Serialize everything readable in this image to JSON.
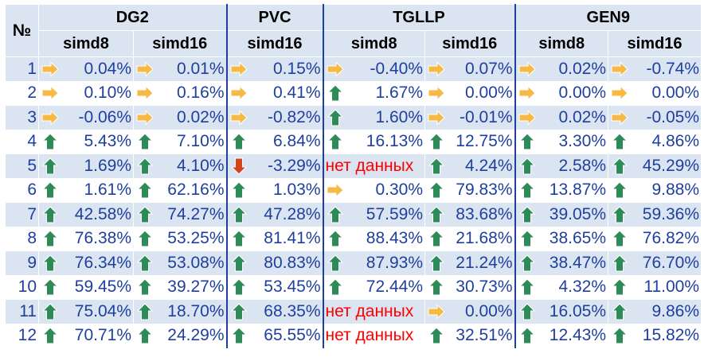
{
  "header": {
    "num_label": "№",
    "groups": [
      {
        "name": "DG2",
        "cols": [
          "simd8",
          "simd16"
        ]
      },
      {
        "name": "PVC",
        "cols": [
          "simd16"
        ]
      },
      {
        "name": "TGLLP",
        "cols": [
          "simd8",
          "simd16"
        ]
      },
      {
        "name": "GEN9",
        "cols": [
          "simd8",
          "simd16"
        ]
      }
    ]
  },
  "icons": {
    "up": {
      "name": "green-up-arrow-icon",
      "color": "#2e8b57"
    },
    "right": {
      "name": "yellow-right-arrow-icon",
      "color": "#f5b944"
    },
    "down": {
      "name": "red-down-arrow-icon",
      "color": "#d2461e"
    }
  },
  "no_data_color": "#ff0000",
  "rows": [
    {
      "num": "1",
      "cells": [
        {
          "icon": "right",
          "value": "0.04%"
        },
        {
          "icon": "right",
          "value": "0.01%"
        },
        {
          "icon": "right",
          "value": "0.15%"
        },
        {
          "icon": "right",
          "value": "-0.40%"
        },
        {
          "icon": "right",
          "value": "0.07%"
        },
        {
          "icon": "right",
          "value": "0.02%"
        },
        {
          "icon": "right",
          "value": "-0.74%"
        }
      ]
    },
    {
      "num": "2",
      "cells": [
        {
          "icon": "right",
          "value": "0.10%"
        },
        {
          "icon": "right",
          "value": "0.16%"
        },
        {
          "icon": "right",
          "value": "0.41%"
        },
        {
          "icon": "up",
          "value": "1.67%"
        },
        {
          "icon": "right",
          "value": "0.00%"
        },
        {
          "icon": "right",
          "value": "0.00%"
        },
        {
          "icon": "right",
          "value": "0.00%"
        }
      ]
    },
    {
      "num": "3",
      "cells": [
        {
          "icon": "right",
          "value": "-0.06%"
        },
        {
          "icon": "right",
          "value": "0.02%"
        },
        {
          "icon": "right",
          "value": "-0.82%"
        },
        {
          "icon": "up",
          "value": "1.60%"
        },
        {
          "icon": "right",
          "value": "-0.01%"
        },
        {
          "icon": "right",
          "value": "0.02%"
        },
        {
          "icon": "right",
          "value": "-0.05%"
        }
      ]
    },
    {
      "num": "4",
      "cells": [
        {
          "icon": "up",
          "value": "5.43%"
        },
        {
          "icon": "up",
          "value": "7.10%"
        },
        {
          "icon": "up",
          "value": "6.84%"
        },
        {
          "icon": "up",
          "value": "16.13%"
        },
        {
          "icon": "up",
          "value": "12.75%"
        },
        {
          "icon": "up",
          "value": "3.30%"
        },
        {
          "icon": "up",
          "value": "4.86%"
        }
      ]
    },
    {
      "num": "5",
      "cells": [
        {
          "icon": "up",
          "value": "1.69%"
        },
        {
          "icon": "up",
          "value": "4.10%"
        },
        {
          "icon": "down",
          "value": "-3.29%"
        },
        {
          "icon": null,
          "value": "нет данных",
          "nodata": true
        },
        {
          "icon": "up",
          "value": "4.24%"
        },
        {
          "icon": "up",
          "value": "2.58%"
        },
        {
          "icon": "up",
          "value": "45.29%"
        }
      ]
    },
    {
      "num": "6",
      "cells": [
        {
          "icon": "up",
          "value": "1.61%"
        },
        {
          "icon": "up",
          "value": "62.16%"
        },
        {
          "icon": "up",
          "value": "1.03%"
        },
        {
          "icon": "right",
          "value": "0.30%"
        },
        {
          "icon": "up",
          "value": "79.83%"
        },
        {
          "icon": "up",
          "value": "13.87%"
        },
        {
          "icon": "up",
          "value": "9.88%"
        }
      ]
    },
    {
      "num": "7",
      "cells": [
        {
          "icon": "up",
          "value": "42.58%"
        },
        {
          "icon": "up",
          "value": "74.27%"
        },
        {
          "icon": "up",
          "value": "47.28%"
        },
        {
          "icon": "up",
          "value": "57.59%"
        },
        {
          "icon": "up",
          "value": "83.68%"
        },
        {
          "icon": "up",
          "value": "39.05%"
        },
        {
          "icon": "up",
          "value": "59.36%"
        }
      ]
    },
    {
      "num": "8",
      "cells": [
        {
          "icon": "up",
          "value": "76.38%"
        },
        {
          "icon": "up",
          "value": "53.25%"
        },
        {
          "icon": "up",
          "value": "81.41%"
        },
        {
          "icon": "up",
          "value": "88.43%"
        },
        {
          "icon": "up",
          "value": "21.68%"
        },
        {
          "icon": "up",
          "value": "38.65%"
        },
        {
          "icon": "up",
          "value": "76.82%"
        }
      ]
    },
    {
      "num": "9",
      "cells": [
        {
          "icon": "up",
          "value": "76.34%"
        },
        {
          "icon": "up",
          "value": "53.08%"
        },
        {
          "icon": "up",
          "value": "80.83%"
        },
        {
          "icon": "up",
          "value": "87.93%"
        },
        {
          "icon": "up",
          "value": "21.24%"
        },
        {
          "icon": "up",
          "value": "38.47%"
        },
        {
          "icon": "up",
          "value": "76.70%"
        }
      ]
    },
    {
      "num": "10",
      "cells": [
        {
          "icon": "up",
          "value": "59.45%"
        },
        {
          "icon": "up",
          "value": "39.27%"
        },
        {
          "icon": "up",
          "value": "53.45%"
        },
        {
          "icon": "up",
          "value": "72.44%"
        },
        {
          "icon": "up",
          "value": "30.73%"
        },
        {
          "icon": "up",
          "value": "4.32%"
        },
        {
          "icon": "up",
          "value": "11.00%"
        }
      ]
    },
    {
      "num": "11",
      "cells": [
        {
          "icon": "up",
          "value": "75.04%"
        },
        {
          "icon": "up",
          "value": "18.70%"
        },
        {
          "icon": "up",
          "value": "68.35%"
        },
        {
          "icon": null,
          "value": "нет данных",
          "nodata": true
        },
        {
          "icon": "right",
          "value": "0.00%"
        },
        {
          "icon": "up",
          "value": "16.05%"
        },
        {
          "icon": "up",
          "value": "9.86%"
        }
      ]
    },
    {
      "num": "12",
      "cells": [
        {
          "icon": "up",
          "value": "70.71%"
        },
        {
          "icon": "up",
          "value": "24.29%"
        },
        {
          "icon": "up",
          "value": "65.55%"
        },
        {
          "icon": null,
          "value": "нет данных",
          "nodata": true
        },
        {
          "icon": "up",
          "value": "32.51%"
        },
        {
          "icon": "up",
          "value": "12.43%"
        },
        {
          "icon": "up",
          "value": "15.82%"
        }
      ]
    }
  ]
}
